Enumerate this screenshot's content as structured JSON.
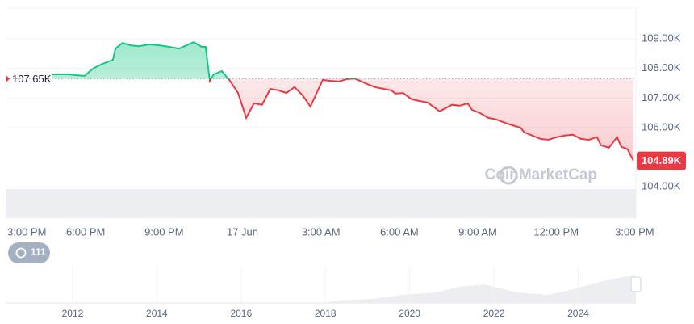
{
  "chart_data": {
    "type": "line",
    "watermark": "CoinMarketCap",
    "baseline": 107.65,
    "baseline_label": "107.65K",
    "current": 104.89,
    "current_label": "104.89K",
    "up_color": "#16c784",
    "down_color": "#ea3943",
    "xlim": [
      0,
      24.05
    ],
    "ylim": [
      102.94,
      110.04
    ],
    "xticks": [
      {
        "value": 0,
        "label": "3:00 PM"
      },
      {
        "value": 3,
        "label": "6:00 PM"
      },
      {
        "value": 6,
        "label": "9:00 PM"
      },
      {
        "value": 9,
        "label": "17 Jun"
      },
      {
        "value": 12,
        "label": "3:00 AM"
      },
      {
        "value": 15,
        "label": "6:00 AM"
      },
      {
        "value": 18,
        "label": "9:00 AM"
      },
      {
        "value": 21,
        "label": "12:00 PM"
      },
      {
        "value": 24,
        "label": "3:00 PM"
      }
    ],
    "yticks": [
      {
        "value": 104,
        "label": "104.00K"
      },
      {
        "value": 106,
        "label": "106.00K"
      },
      {
        "value": 107,
        "label": "107.00K"
      },
      {
        "value": 108,
        "label": "108.00K"
      },
      {
        "value": 109,
        "label": "109.00K"
      }
    ],
    "grid": true,
    "x": [
      1.73,
      2.04,
      2.35,
      2.65,
      2.96,
      3.27,
      3.58,
      3.89,
      4.04,
      4.14,
      4.41,
      4.72,
      5.03,
      5.43,
      5.83,
      6.2,
      6.57,
      6.94,
      7.13,
      7.44,
      7.59,
      7.75,
      7.9,
      8.21,
      8.52,
      8.83,
      9.14,
      9.44,
      9.75,
      10.06,
      10.37,
      10.68,
      10.99,
      11.3,
      11.6,
      11.91,
      12.07,
      12.38,
      12.69,
      12.99,
      13.3,
      13.77,
      14.07,
      14.38,
      14.69,
      14.85,
      15.15,
      15.46,
      15.77,
      16.08,
      16.54,
      17.01,
      17.31,
      17.62,
      17.78,
      18.09,
      18.4,
      18.7,
      19.01,
      19.32,
      19.63,
      19.78,
      20.09,
      20.4,
      20.71,
      21.02,
      21.33,
      21.64,
      21.94,
      22.25,
      22.56,
      22.72,
      23.02,
      23.33,
      23.49,
      23.73,
      23.95
    ],
    "values": [
      107.8,
      107.8,
      107.8,
      107.77,
      107.75,
      107.99,
      108.13,
      108.24,
      108.29,
      108.67,
      108.86,
      108.78,
      108.75,
      108.81,
      108.78,
      108.73,
      108.67,
      108.81,
      108.89,
      108.73,
      108.73,
      107.58,
      107.8,
      107.91,
      107.58,
      107.17,
      106.33,
      106.82,
      106.77,
      107.31,
      107.26,
      107.17,
      107.37,
      107.09,
      106.71,
      107.31,
      107.61,
      107.58,
      107.56,
      107.64,
      107.66,
      107.47,
      107.37,
      107.31,
      107.26,
      107.15,
      107.17,
      106.96,
      106.9,
      106.85,
      106.55,
      106.77,
      106.74,
      106.82,
      106.6,
      106.49,
      106.33,
      106.28,
      106.17,
      106.08,
      106.0,
      105.84,
      105.73,
      105.62,
      105.59,
      105.68,
      105.73,
      105.76,
      105.62,
      105.59,
      105.68,
      105.4,
      105.32,
      105.68,
      105.35,
      105.27,
      104.89
    ]
  },
  "history_badge": "111",
  "navigator": {
    "xlim": [
      2010.43,
      2025.37
    ],
    "xticks": [
      2012,
      2014,
      2016,
      2018,
      2020,
      2022,
      2024
    ]
  }
}
